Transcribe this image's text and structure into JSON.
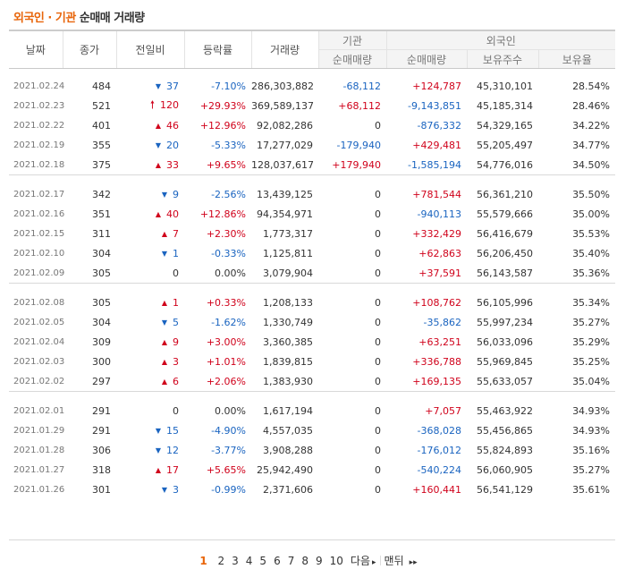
{
  "title": {
    "part1": "외국인",
    "dot": "·",
    "part2": "기관",
    "part3": "순매매 거래량"
  },
  "headers": {
    "date": "날짜",
    "close": "종가",
    "diff": "전일비",
    "rate": "등락률",
    "volume": "거래량",
    "inst": "기관",
    "inst_net": "순매매량",
    "foreign": "외국인",
    "foreign_net": "순매매량",
    "foreign_hold": "보유주수",
    "foreign_ratio": "보유율"
  },
  "groups": [
    [
      {
        "date": "2021.02.24",
        "close": "484",
        "dir": "down",
        "diff": "37",
        "rate": "-7.10%",
        "volume": "286,303,882",
        "inst": "-68,112",
        "foreign": "+124,787",
        "hold": "45,310,101",
        "ratio": "28.54%"
      },
      {
        "date": "2021.02.23",
        "close": "521",
        "dir": "uplimit",
        "diff": "120",
        "rate": "+29.93%",
        "volume": "369,589,137",
        "inst": "+68,112",
        "foreign": "-9,143,851",
        "hold": "45,185,314",
        "ratio": "28.46%"
      },
      {
        "date": "2021.02.22",
        "close": "401",
        "dir": "up",
        "diff": "46",
        "rate": "+12.96%",
        "volume": "92,082,286",
        "inst": "0",
        "foreign": "-876,332",
        "hold": "54,329,165",
        "ratio": "34.22%"
      },
      {
        "date": "2021.02.19",
        "close": "355",
        "dir": "down",
        "diff": "20",
        "rate": "-5.33%",
        "volume": "17,277,029",
        "inst": "-179,940",
        "foreign": "+429,481",
        "hold": "55,205,497",
        "ratio": "34.77%"
      },
      {
        "date": "2021.02.18",
        "close": "375",
        "dir": "up",
        "diff": "33",
        "rate": "+9.65%",
        "volume": "128,037,617",
        "inst": "+179,940",
        "foreign": "-1,585,194",
        "hold": "54,776,016",
        "ratio": "34.50%"
      }
    ],
    [
      {
        "date": "2021.02.17",
        "close": "342",
        "dir": "down",
        "diff": "9",
        "rate": "-2.56%",
        "volume": "13,439,125",
        "inst": "0",
        "foreign": "+781,544",
        "hold": "56,361,210",
        "ratio": "35.50%"
      },
      {
        "date": "2021.02.16",
        "close": "351",
        "dir": "up",
        "diff": "40",
        "rate": "+12.86%",
        "volume": "94,354,971",
        "inst": "0",
        "foreign": "-940,113",
        "hold": "55,579,666",
        "ratio": "35.00%"
      },
      {
        "date": "2021.02.15",
        "close": "311",
        "dir": "up",
        "diff": "7",
        "rate": "+2.30%",
        "volume": "1,773,317",
        "inst": "0",
        "foreign": "+332,429",
        "hold": "56,416,679",
        "ratio": "35.53%"
      },
      {
        "date": "2021.02.10",
        "close": "304",
        "dir": "down",
        "diff": "1",
        "rate": "-0.33%",
        "volume": "1,125,811",
        "inst": "0",
        "foreign": "+62,863",
        "hold": "56,206,450",
        "ratio": "35.40%"
      },
      {
        "date": "2021.02.09",
        "close": "305",
        "dir": "none",
        "diff": "0",
        "rate": "0.00%",
        "volume": "3,079,904",
        "inst": "0",
        "foreign": "+37,591",
        "hold": "56,143,587",
        "ratio": "35.36%"
      }
    ],
    [
      {
        "date": "2021.02.08",
        "close": "305",
        "dir": "up",
        "diff": "1",
        "rate": "+0.33%",
        "volume": "1,208,133",
        "inst": "0",
        "foreign": "+108,762",
        "hold": "56,105,996",
        "ratio": "35.34%"
      },
      {
        "date": "2021.02.05",
        "close": "304",
        "dir": "down",
        "diff": "5",
        "rate": "-1.62%",
        "volume": "1,330,749",
        "inst": "0",
        "foreign": "-35,862",
        "hold": "55,997,234",
        "ratio": "35.27%"
      },
      {
        "date": "2021.02.04",
        "close": "309",
        "dir": "up",
        "diff": "9",
        "rate": "+3.00%",
        "volume": "3,360,385",
        "inst": "0",
        "foreign": "+63,251",
        "hold": "56,033,096",
        "ratio": "35.29%"
      },
      {
        "date": "2021.02.03",
        "close": "300",
        "dir": "up",
        "diff": "3",
        "rate": "+1.01%",
        "volume": "1,839,815",
        "inst": "0",
        "foreign": "+336,788",
        "hold": "55,969,845",
        "ratio": "35.25%"
      },
      {
        "date": "2021.02.02",
        "close": "297",
        "dir": "up",
        "diff": "6",
        "rate": "+2.06%",
        "volume": "1,383,930",
        "inst": "0",
        "foreign": "+169,135",
        "hold": "55,633,057",
        "ratio": "35.04%"
      }
    ],
    [
      {
        "date": "2021.02.01",
        "close": "291",
        "dir": "none",
        "diff": "0",
        "rate": "0.00%",
        "volume": "1,617,194",
        "inst": "0",
        "foreign": "+7,057",
        "hold": "55,463,922",
        "ratio": "34.93%"
      },
      {
        "date": "2021.01.29",
        "close": "291",
        "dir": "down",
        "diff": "15",
        "rate": "-4.90%",
        "volume": "4,557,035",
        "inst": "0",
        "foreign": "-368,028",
        "hold": "55,456,865",
        "ratio": "34.93%"
      },
      {
        "date": "2021.01.28",
        "close": "306",
        "dir": "down",
        "diff": "12",
        "rate": "-3.77%",
        "volume": "3,908,288",
        "inst": "0",
        "foreign": "-176,012",
        "hold": "55,824,893",
        "ratio": "35.16%"
      },
      {
        "date": "2021.01.27",
        "close": "318",
        "dir": "up",
        "diff": "17",
        "rate": "+5.65%",
        "volume": "25,942,490",
        "inst": "0",
        "foreign": "-540,224",
        "hold": "56,060,905",
        "ratio": "35.27%"
      },
      {
        "date": "2021.01.26",
        "close": "301",
        "dir": "down",
        "diff": "3",
        "rate": "-0.99%",
        "volume": "2,371,606",
        "inst": "0",
        "foreign": "+160,441",
        "hold": "56,541,129",
        "ratio": "35.61%"
      }
    ]
  ],
  "pagination": {
    "current": "1",
    "pages": [
      "2",
      "3",
      "4",
      "5",
      "6",
      "7",
      "8",
      "9",
      "10"
    ],
    "next": "다음",
    "last": "맨뒤"
  },
  "icons": {
    "up": "▲",
    "down": "▼",
    "uplimit": "🠕",
    "next": "▸",
    "last": "▸▸"
  },
  "colors": {
    "up": "#d0021b",
    "down": "#1a64c0",
    "accent": "#e8650a"
  }
}
